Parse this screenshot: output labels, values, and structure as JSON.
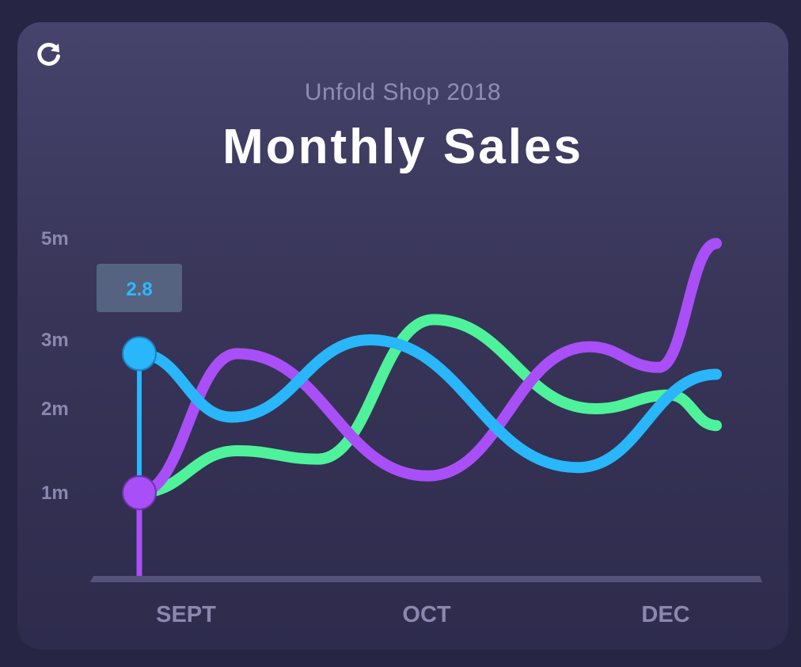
{
  "header": {
    "subtitle": "Unfold Shop 2018",
    "title": "Monthly Sales",
    "refresh_icon": "refresh-icon"
  },
  "colors": {
    "purple": "#a94ff7",
    "blue": "#29b6fb",
    "green": "#4ef29a",
    "axis": "#55527a"
  },
  "chart_data": {
    "type": "line",
    "title": "Monthly Sales",
    "subtitle": "Unfold Shop 2018",
    "xlabel": "",
    "ylabel": "",
    "x_tick_labels": [
      "SEPT",
      "OCT",
      "DEC"
    ],
    "y_tick_labels": [
      "5m",
      "3m",
      "2m",
      "1m"
    ],
    "y_tick_values": [
      5,
      3,
      2,
      1
    ],
    "ylim": [
      0,
      5.1
    ],
    "xlim": [
      0,
      1
    ],
    "grid": false,
    "legend": "none",
    "curve": "smooth",
    "series": [
      {
        "color": "#a94ff7",
        "points": [
          [
            0,
            1.0
          ],
          [
            0.17,
            2.8
          ],
          [
            0.5,
            1.2
          ],
          [
            0.78,
            2.9
          ],
          [
            0.9,
            2.6
          ],
          [
            1.0,
            4.9
          ]
        ]
      },
      {
        "color": "#29b6fb",
        "points": [
          [
            0,
            2.8
          ],
          [
            0.16,
            1.9
          ],
          [
            0.4,
            3.0
          ],
          [
            0.76,
            1.3
          ],
          [
            1.0,
            2.5
          ]
        ]
      },
      {
        "color": "#4ef29a",
        "points": [
          [
            0,
            1.0
          ],
          [
            0.17,
            1.5
          ],
          [
            0.31,
            1.4
          ],
          [
            0.51,
            3.4
          ],
          [
            0.79,
            2.0
          ],
          [
            0.92,
            2.2
          ],
          [
            1.0,
            1.8
          ]
        ]
      }
    ],
    "tooltip": {
      "value": "2.8",
      "x": 0,
      "y": 2.8,
      "series_color": "#29b6fb"
    },
    "marker": {
      "x": 0,
      "y": 1.0,
      "series_color": "#a94ff7"
    }
  }
}
